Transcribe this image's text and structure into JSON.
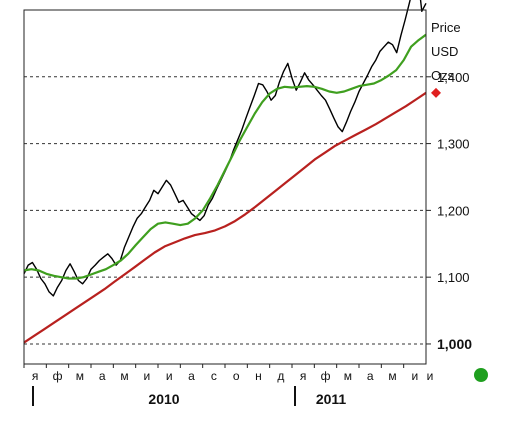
{
  "chart_data": {
    "type": "line",
    "unit_label": [
      "Price",
      "USD",
      "Ozs"
    ],
    "ylim": [
      970,
      1500
    ],
    "y_ticks": [
      {
        "value": 1000,
        "label": "1,000",
        "emphasis": true
      },
      {
        "value": 1100,
        "label": "1,100",
        "emphasis": false
      },
      {
        "value": 1200,
        "label": "1,200",
        "emphasis": false
      },
      {
        "value": 1300,
        "label": "1,300",
        "emphasis": false
      },
      {
        "value": 1400,
        "label": "1,400",
        "emphasis": false
      }
    ],
    "month_labels": [
      "я",
      "ф",
      "м",
      "а",
      "м",
      "и",
      "и",
      "а",
      "с",
      "о",
      "н",
      "д",
      "я",
      "ф",
      "м",
      "а",
      "м",
      "и"
    ],
    "year_labels": [
      "2010",
      "2011"
    ],
    "grid": true,
    "series": [
      {
        "role": "price",
        "color": "#000000",
        "values": [
          1105,
          1118,
          1122,
          1112,
          1098,
          1090,
          1078,
          1072,
          1085,
          1095,
          1110,
          1120,
          1108,
          1095,
          1090,
          1098,
          1112,
          1118,
          1125,
          1130,
          1135,
          1128,
          1118,
          1125,
          1145,
          1160,
          1175,
          1188,
          1195,
          1205,
          1215,
          1230,
          1225,
          1235,
          1245,
          1238,
          1225,
          1212,
          1215,
          1205,
          1195,
          1190,
          1185,
          1192,
          1208,
          1218,
          1232,
          1245,
          1258,
          1272,
          1290,
          1305,
          1320,
          1338,
          1355,
          1372,
          1390,
          1388,
          1378,
          1365,
          1372,
          1392,
          1408,
          1420,
          1398,
          1380,
          1392,
          1406,
          1395,
          1388,
          1380,
          1372,
          1365,
          1352,
          1338,
          1325,
          1318,
          1332,
          1348,
          1362,
          1378,
          1390,
          1402,
          1415,
          1425,
          1438,
          1445,
          1452,
          1448,
          1436,
          1462,
          1485,
          1510,
          1535,
          1555,
          1498,
          1510
        ]
      },
      {
        "role": "short-moving-average",
        "color": "#3f9f1f",
        "values": [
          1110,
          1112,
          1110,
          1105,
          1102,
          1100,
          1098,
          1098,
          1100,
          1104,
          1108,
          1112,
          1118,
          1125,
          1135,
          1148,
          1160,
          1172,
          1180,
          1182,
          1180,
          1178,
          1180,
          1188,
          1200,
          1218,
          1238,
          1260,
          1282,
          1305,
          1325,
          1345,
          1362,
          1375,
          1382,
          1385,
          1384,
          1385,
          1386,
          1385,
          1382,
          1378,
          1376,
          1378,
          1382,
          1386,
          1388,
          1390,
          1395,
          1402,
          1410,
          1425,
          1445,
          1455,
          1463
        ]
      },
      {
        "role": "long-moving-average",
        "color": "#b8211f",
        "values": [
          1002,
          1012,
          1022,
          1032,
          1042,
          1052,
          1062,
          1072,
          1082,
          1093,
          1104,
          1115,
          1126,
          1137,
          1146,
          1152,
          1158,
          1163,
          1166,
          1170,
          1176,
          1184,
          1194,
          1205,
          1217,
          1229,
          1241,
          1253,
          1265,
          1277,
          1287,
          1297,
          1305,
          1313,
          1321,
          1329,
          1338,
          1347,
          1356,
          1366,
          1376
        ]
      }
    ],
    "markers": [
      {
        "shape": "diamond",
        "color": "#e02020"
      },
      {
        "shape": "circle",
        "color": "#1f9f1f"
      }
    ]
  }
}
